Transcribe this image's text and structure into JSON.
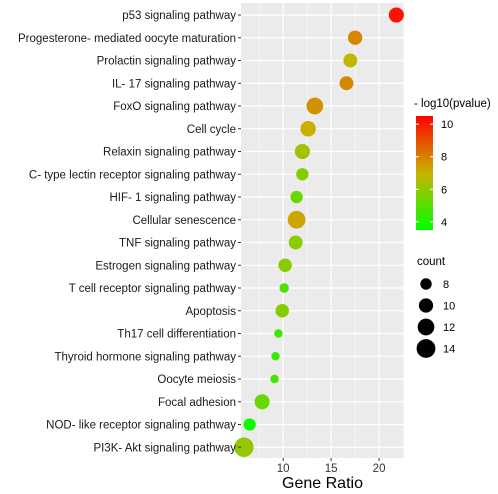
{
  "chart_data": {
    "type": "scatter",
    "title": "",
    "xlabel": "Gene Ratio",
    "ylabel": "",
    "xlim": [
      5.6,
      22.6
    ],
    "xticks": [
      10,
      15,
      20
    ],
    "grid": true,
    "categories": [
      "p53 signaling pathway",
      "Progesterone- mediated oocyte maturation",
      "Prolactin signaling pathway",
      "IL- 17 signaling pathway",
      "FoxO signaling pathway",
      "Cell cycle",
      "Relaxin signaling pathway",
      "C- type lectin receptor signaling pathway",
      "HIF- 1 signaling pathway",
      "Cellular senescence",
      "TNF signaling pathway",
      "Estrogen signaling pathway",
      "T cell receptor signaling pathway",
      "Apoptosis",
      "Th17 cell differentiation",
      "Thyroid hormone signaling pathway",
      "Oocyte meiosis",
      "Focal adhesion",
      "NOD- like receptor signaling pathway",
      "PI3K- Akt signaling pathway"
    ],
    "points": [
      {
        "gene_ratio": 21.8,
        "count": 10.6,
        "neglog10_pvalue": 10.1
      },
      {
        "gene_ratio": 17.5,
        "count": 10.0,
        "neglog10_pvalue": 7.9
      },
      {
        "gene_ratio": 17.0,
        "count": 9.7,
        "neglog10_pvalue": 6.9
      },
      {
        "gene_ratio": 16.6,
        "count": 9.7,
        "neglog10_pvalue": 7.9
      },
      {
        "gene_ratio": 13.3,
        "count": 12.0,
        "neglog10_pvalue": 7.7
      },
      {
        "gene_ratio": 12.6,
        "count": 10.9,
        "neglog10_pvalue": 7.1
      },
      {
        "gene_ratio": 12.0,
        "count": 10.6,
        "neglog10_pvalue": 6.4
      },
      {
        "gene_ratio": 12.0,
        "count": 8.6,
        "neglog10_pvalue": 5.8
      },
      {
        "gene_ratio": 11.4,
        "count": 8.6,
        "neglog10_pvalue": 5.3
      },
      {
        "gene_ratio": 11.4,
        "count": 13.0,
        "neglog10_pvalue": 7.3
      },
      {
        "gene_ratio": 11.3,
        "count": 9.7,
        "neglog10_pvalue": 5.9
      },
      {
        "gene_ratio": 10.2,
        "count": 9.4,
        "neglog10_pvalue": 5.9
      },
      {
        "gene_ratio": 10.1,
        "count": 6.9,
        "neglog10_pvalue": 4.9
      },
      {
        "gene_ratio": 9.9,
        "count": 9.4,
        "neglog10_pvalue": 5.8
      },
      {
        "gene_ratio": 9.5,
        "count": 6.4,
        "neglog10_pvalue": 4.5
      },
      {
        "gene_ratio": 9.2,
        "count": 6.4,
        "neglog10_pvalue": 4.5
      },
      {
        "gene_ratio": 9.1,
        "count": 6.4,
        "neglog10_pvalue": 4.7
      },
      {
        "gene_ratio": 7.8,
        "count": 10.6,
        "neglog10_pvalue": 5.3
      },
      {
        "gene_ratio": 6.5,
        "count": 8.6,
        "neglog10_pvalue": 3.8
      },
      {
        "gene_ratio": 5.9,
        "count": 14.6,
        "neglog10_pvalue": 6.1
      }
    ],
    "color_legend": {
      "title": "- log10(pvalue)",
      "min": 3.5,
      "max": 10.5,
      "ticks": [
        4,
        6,
        8,
        10
      ],
      "color_low": "#00ff00",
      "color_mid": "#c8b400",
      "color_high": "#ff0000"
    },
    "size_legend": {
      "title": "count",
      "values": [
        8,
        10,
        12,
        14
      ]
    },
    "panel_background": "#ebebeb",
    "grid_color": "#ffffff"
  }
}
